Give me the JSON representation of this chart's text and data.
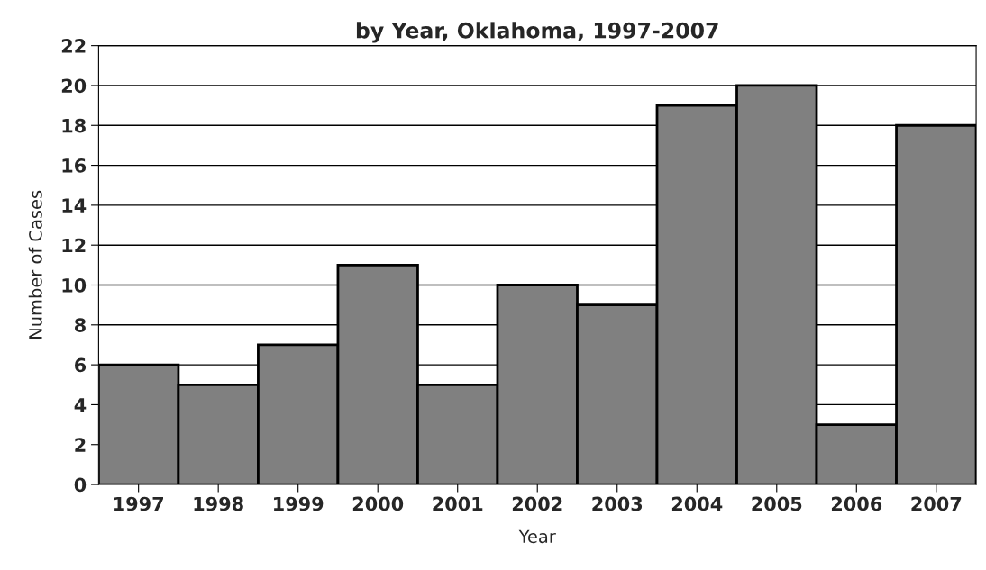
{
  "chart_data": {
    "type": "bar",
    "title": "by Year, Oklahoma, 1997-2007",
    "xlabel": "Year",
    "ylabel": "Number of Cases",
    "categories": [
      "1997",
      "1998",
      "1999",
      "2000",
      "2001",
      "2002",
      "2003",
      "2004",
      "2005",
      "2006",
      "2007"
    ],
    "values": [
      6,
      5,
      7,
      11,
      5,
      10,
      9,
      19,
      20,
      3,
      18
    ],
    "color": "#808080",
    "ylim": [
      0,
      22
    ],
    "yticks": [
      0,
      2,
      4,
      6,
      8,
      10,
      12,
      14,
      16,
      18,
      20,
      22
    ],
    "grid": "y"
  }
}
